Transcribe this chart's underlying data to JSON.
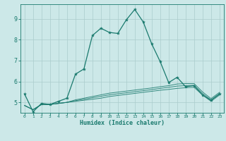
{
  "background_color": "#cce8e8",
  "grid_color": "#aacccc",
  "line_color": "#1a7a6e",
  "xlabel": "Humidex (Indice chaleur)",
  "xlim": [
    -0.5,
    23.5
  ],
  "ylim": [
    4.5,
    9.7
  ],
  "yticks": [
    5,
    6,
    7,
    8,
    9
  ],
  "xticks": [
    0,
    1,
    2,
    3,
    4,
    5,
    6,
    7,
    8,
    9,
    10,
    11,
    12,
    13,
    14,
    15,
    16,
    17,
    18,
    19,
    20,
    21,
    22,
    23
  ],
  "main_line": {
    "x": [
      0,
      1,
      2,
      3,
      4,
      5,
      6,
      7,
      8,
      9,
      10,
      11,
      12,
      13,
      14,
      15,
      16,
      17,
      18,
      19,
      20,
      21,
      22,
      23
    ],
    "y": [
      5.4,
      4.55,
      4.95,
      4.9,
      5.05,
      5.2,
      6.35,
      6.6,
      8.2,
      8.55,
      8.35,
      8.3,
      8.95,
      9.45,
      8.85,
      7.8,
      6.95,
      5.95,
      6.2,
      5.75,
      5.8,
      5.35,
      5.1,
      5.4
    ]
  },
  "band_lines": [
    {
      "x": [
        0,
        1,
        2,
        3,
        4,
        5,
        6,
        7,
        8,
        9,
        10,
        11,
        12,
        13,
        14,
        15,
        16,
        17,
        18,
        19,
        20,
        21,
        22,
        23
      ],
      "y": [
        4.85,
        4.65,
        4.9,
        4.9,
        4.95,
        5.0,
        5.05,
        5.1,
        5.15,
        5.2,
        5.28,
        5.33,
        5.38,
        5.43,
        5.48,
        5.53,
        5.58,
        5.62,
        5.67,
        5.7,
        5.72,
        5.35,
        5.05,
        5.35
      ]
    },
    {
      "x": [
        0,
        1,
        2,
        3,
        4,
        5,
        6,
        7,
        8,
        9,
        10,
        11,
        12,
        13,
        14,
        15,
        16,
        17,
        18,
        19,
        20,
        21,
        22,
        23
      ],
      "y": [
        4.85,
        4.65,
        4.9,
        4.9,
        4.95,
        5.0,
        5.08,
        5.15,
        5.22,
        5.29,
        5.36,
        5.41,
        5.46,
        5.51,
        5.56,
        5.61,
        5.67,
        5.72,
        5.78,
        5.8,
        5.82,
        5.42,
        5.12,
        5.42
      ]
    },
    {
      "x": [
        0,
        1,
        2,
        3,
        4,
        5,
        6,
        7,
        8,
        9,
        10,
        11,
        12,
        13,
        14,
        15,
        16,
        17,
        18,
        19,
        20,
        21,
        22,
        23
      ],
      "y": [
        4.85,
        4.65,
        4.9,
        4.9,
        4.95,
        5.0,
        5.12,
        5.2,
        5.28,
        5.36,
        5.44,
        5.49,
        5.54,
        5.59,
        5.64,
        5.69,
        5.75,
        5.8,
        5.88,
        5.9,
        5.9,
        5.5,
        5.18,
        5.48
      ]
    }
  ]
}
